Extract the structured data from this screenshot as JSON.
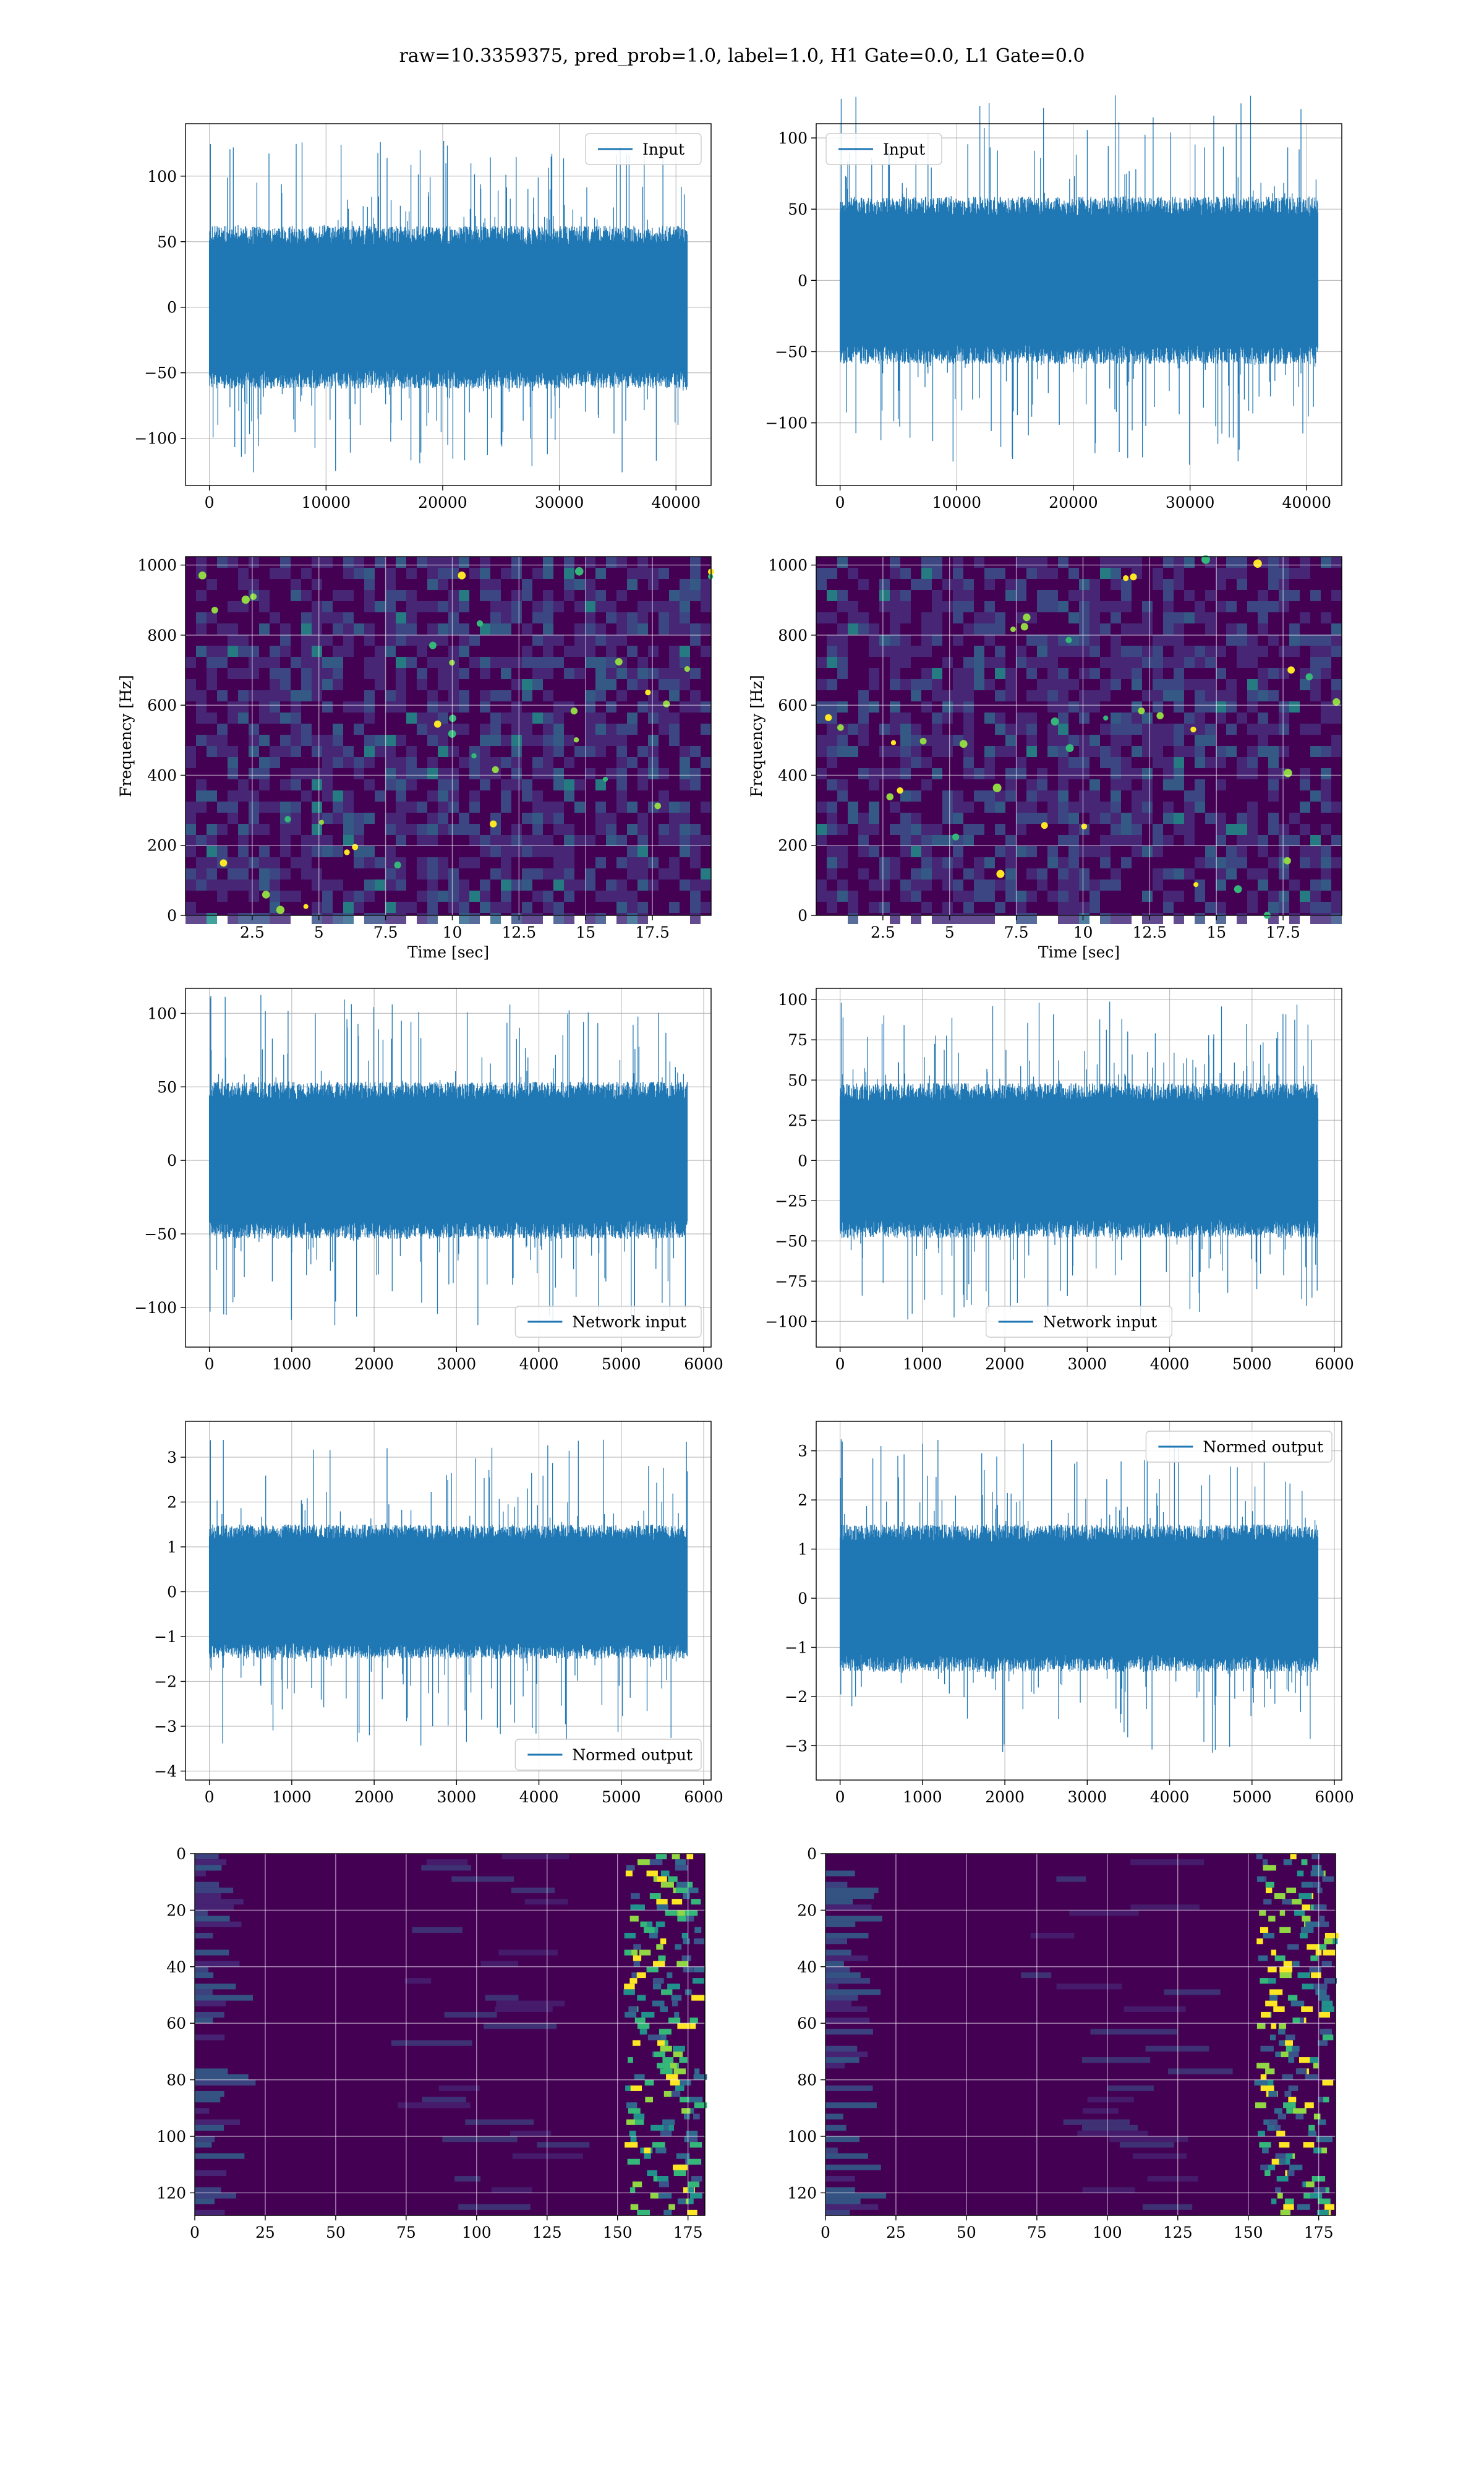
{
  "figure": {
    "title": "raw=10.3359375, pred_prob=1.0, label=1.0, H1 Gate=0.0, L1 Gate=0.0"
  },
  "colors": {
    "line": "#1f77b4",
    "heatmap_bg": "#440154",
    "heatmap_mid": "#31688e",
    "heatmap_high": "#35b779",
    "heatmap_peak": "#fde725",
    "grid": "#b0b0b0"
  },
  "chart_data": [
    {
      "id": "h1-input",
      "type": "line",
      "title": "",
      "xlabel": "",
      "ylabel": "",
      "legend": "Input",
      "legend_position": "upper right",
      "xlim": [
        -2048,
        43008
      ],
      "ylim": [
        -136,
        140
      ],
      "xticks": [
        0,
        10000,
        20000,
        30000,
        40000
      ],
      "yticks": [
        -100,
        -50,
        0,
        50,
        100
      ],
      "x_range": [
        0,
        40960
      ],
      "core_amplitude": 58,
      "peak_amplitude": 127,
      "seed": 11,
      "grid": true
    },
    {
      "id": "l1-input",
      "type": "line",
      "title": "",
      "xlabel": "",
      "ylabel": "",
      "legend": "Input",
      "legend_position": "upper left",
      "xlim": [
        -2048,
        43008
      ],
      "ylim": [
        -144,
        110
      ],
      "xticks": [
        0,
        10000,
        20000,
        30000,
        40000
      ],
      "yticks": [
        -100,
        -50,
        0,
        50,
        100
      ],
      "x_range": [
        0,
        40960
      ],
      "core_amplitude": 55,
      "peak_amplitude": 130,
      "seed": 23,
      "grid": true
    },
    {
      "id": "h1-spectrogram",
      "type": "heatmap",
      "title": "",
      "xlabel": "Time [sec]",
      "ylabel": "Frequency [Hz]",
      "xlim": [
        0,
        19.7
      ],
      "ylim": [
        0,
        1024
      ],
      "xticks": [
        2.5,
        5.0,
        7.5,
        10.0,
        12.5,
        15.0,
        17.5
      ],
      "yticks": [
        0,
        200,
        400,
        600,
        800,
        1000
      ],
      "seed": 5,
      "grid": true
    },
    {
      "id": "l1-spectrogram",
      "type": "heatmap",
      "title": "",
      "xlabel": "Time [sec]",
      "ylabel": "Frequency [Hz]",
      "xlim": [
        0,
        19.7
      ],
      "ylim": [
        0,
        1024
      ],
      "xticks": [
        2.5,
        5.0,
        7.5,
        10.0,
        12.5,
        15.0,
        17.5
      ],
      "yticks": [
        0,
        200,
        400,
        600,
        800,
        1000
      ],
      "seed": 9,
      "grid": true
    },
    {
      "id": "h1-network-input",
      "type": "line",
      "title": "",
      "xlabel": "",
      "ylabel": "",
      "legend": "Network input",
      "legend_position": "lower right",
      "xlim": [
        -290,
        6090
      ],
      "ylim": [
        -127,
        117
      ],
      "xticks": [
        0,
        1000,
        2000,
        3000,
        4000,
        5000,
        6000
      ],
      "yticks": [
        -100,
        -50,
        0,
        50,
        100
      ],
      "x_range": [
        0,
        5800
      ],
      "core_amplitude": 50,
      "peak_amplitude": 113,
      "seed": 31,
      "grid": true
    },
    {
      "id": "l1-network-input",
      "type": "line",
      "title": "",
      "xlabel": "",
      "ylabel": "",
      "legend": "Network input",
      "legend_position": "lower center",
      "xlim": [
        -290,
        6090
      ],
      "ylim": [
        -116,
        107
      ],
      "xticks": [
        0,
        1000,
        2000,
        3000,
        4000,
        5000,
        6000
      ],
      "yticks": [
        -100,
        -75,
        -50,
        -25,
        0,
        25,
        50,
        75,
        100
      ],
      "x_range": [
        0,
        5800
      ],
      "core_amplitude": 45,
      "peak_amplitude": 100,
      "seed": 47,
      "grid": true
    },
    {
      "id": "h1-normed-output",
      "type": "line",
      "title": "",
      "xlabel": "",
      "ylabel": "",
      "legend": "Normed output",
      "legend_position": "lower right",
      "xlim": [
        -290,
        6090
      ],
      "ylim": [
        -4.2,
        3.8
      ],
      "xticks": [
        0,
        1000,
        2000,
        3000,
        4000,
        5000,
        6000
      ],
      "yticks": [
        -4,
        -3,
        -2,
        -1,
        0,
        1,
        2,
        3
      ],
      "x_range": [
        0,
        5800
      ],
      "core_amplitude": 1.4,
      "peak_amplitude": 3.45,
      "seed": 59,
      "grid": true
    },
    {
      "id": "l1-normed-output",
      "type": "line",
      "title": "",
      "xlabel": "",
      "ylabel": "",
      "legend": "Normed output",
      "legend_position": "upper right",
      "xlim": [
        -290,
        6090
      ],
      "ylim": [
        -3.7,
        3.6
      ],
      "xticks": [
        0,
        1000,
        2000,
        3000,
        4000,
        5000,
        6000
      ],
      "yticks": [
        -3,
        -2,
        -1,
        0,
        1,
        2,
        3
      ],
      "x_range": [
        0,
        5800
      ],
      "core_amplitude": 1.4,
      "peak_amplitude": 3.3,
      "seed": 71,
      "grid": true
    },
    {
      "id": "h1-feature-map",
      "type": "heatmap",
      "title": "",
      "xlabel": "",
      "ylabel": "",
      "xlim": [
        0,
        181
      ],
      "ylim": [
        0,
        128
      ],
      "y_inverted": true,
      "xticks": [
        0,
        25,
        50,
        75,
        100,
        125,
        150,
        175
      ],
      "yticks": [
        0,
        20,
        40,
        60,
        80,
        100,
        120
      ],
      "seed": 83,
      "grid": true
    },
    {
      "id": "l1-feature-map",
      "type": "heatmap",
      "title": "",
      "xlabel": "",
      "ylabel": "",
      "xlim": [
        0,
        181
      ],
      "ylim": [
        0,
        128
      ],
      "y_inverted": true,
      "xticks": [
        0,
        25,
        50,
        75,
        100,
        125,
        150,
        175
      ],
      "yticks": [
        0,
        20,
        40,
        60,
        80,
        100,
        120
      ],
      "seed": 97,
      "grid": true
    }
  ]
}
